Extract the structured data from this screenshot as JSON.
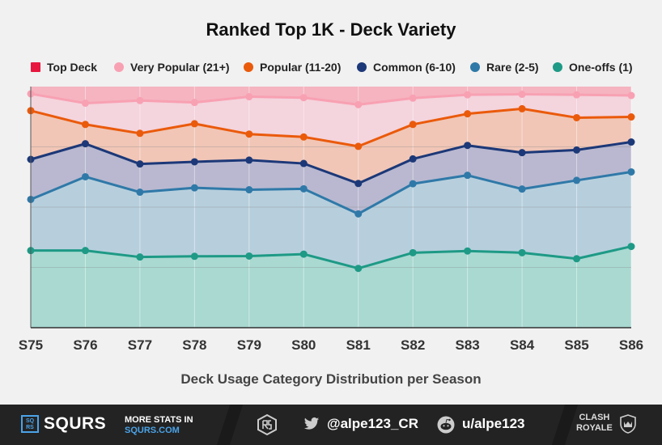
{
  "chart_data": {
    "type": "area",
    "stacked": true,
    "title": "Ranked Top 1K - Deck Variety",
    "xlabel": "Deck Usage Category Distribution per Season",
    "ylabel": "",
    "categories": [
      "S75",
      "S76",
      "S77",
      "S78",
      "S79",
      "S80",
      "S81",
      "S82",
      "S83",
      "S84",
      "S85",
      "S86"
    ],
    "ylim": [
      0,
      100
    ],
    "gridlines": [
      25,
      50,
      75
    ],
    "legend_position": "top",
    "series": [
      {
        "name": "One-offs (1)",
        "color": "#1e9a86",
        "fill": "#a9d9d1",
        "values": [
          32.0,
          32.0,
          29.3,
          29.6,
          29.7,
          30.5,
          24.6,
          31.1,
          31.8,
          31.1,
          28.6,
          33.7
        ]
      },
      {
        "name": "Rare (2-5)",
        "color": "#2f79a8",
        "fill": "#b7cfdd",
        "values": [
          53.2,
          62.6,
          56.2,
          58.0,
          57.2,
          57.6,
          47.2,
          59.7,
          63.2,
          57.5,
          61.1,
          64.6
        ]
      },
      {
        "name": "Common (6-10)",
        "color": "#1c3878",
        "fill": "#b9b8d0",
        "values": [
          69.8,
          76.3,
          67.9,
          68.8,
          69.5,
          68.1,
          59.8,
          70.0,
          75.6,
          72.6,
          73.7,
          77.0
        ]
      },
      {
        "name": "Popular (11-20)",
        "color": "#ea5a0b",
        "fill": "#f1c6b6",
        "values": [
          90.0,
          84.3,
          80.6,
          84.6,
          80.3,
          79.1,
          75.2,
          84.3,
          88.7,
          90.8,
          87.1,
          87.4
        ]
      },
      {
        "name": "Very Popular (21+)",
        "color": "#f8a1b3",
        "fill": "#f4d4dd",
        "values": [
          97.0,
          93.1,
          94.2,
          93.4,
          95.8,
          95.4,
          92.5,
          95.2,
          96.6,
          96.8,
          96.6,
          96.3
        ]
      },
      {
        "name": "Top Deck",
        "color": "#e8173f",
        "fill": "#f5b4c0",
        "values": [
          100,
          100,
          100,
          100,
          100,
          100,
          100,
          100,
          100,
          100,
          100,
          100
        ]
      }
    ],
    "legend_order": [
      "Top Deck",
      "Very Popular (21+)",
      "Popular (11-20)",
      "Common (6-10)",
      "Rare (2-5)",
      "One-offs (1)"
    ]
  },
  "footer": {
    "brand": "SQURS",
    "brand_logo": "SQ RS",
    "more_stats_line1": "MORE STATS IN",
    "more_stats_line2": "SQURS.COM",
    "twitter_handle": "@alpe123_CR",
    "reddit_handle": "u/alpe123",
    "game_logo_line1": "CLASH",
    "game_logo_line2": "ROYALE",
    "icons": [
      "rs-icon",
      "twitter-icon",
      "reddit-icon",
      "shield-icon"
    ]
  }
}
